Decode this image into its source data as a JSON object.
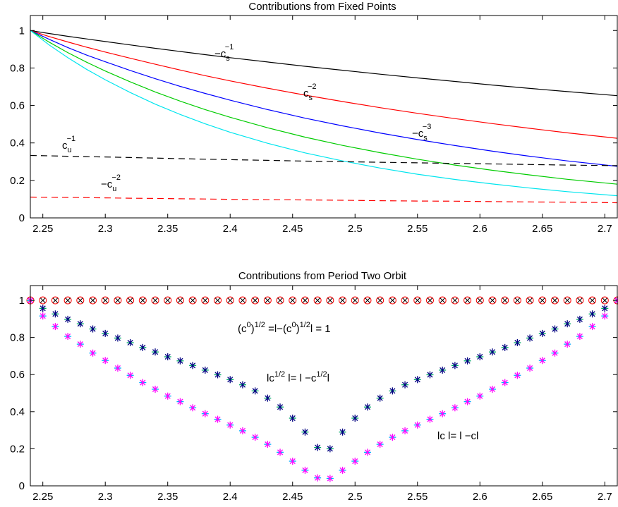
{
  "chart_data": [
    {
      "type": "line",
      "title": "Contributions from Fixed Points",
      "xlabel": "",
      "ylabel": "",
      "xlim": [
        2.24,
        2.71
      ],
      "ylim": [
        0,
        1.08
      ],
      "xticks": [
        2.25,
        2.3,
        2.35,
        2.4,
        2.45,
        2.5,
        2.55,
        2.6,
        2.65,
        2.7
      ],
      "xtick_labels": [
        "2.25",
        "2.3",
        "2.35",
        "2.4",
        "2.45",
        "2.5",
        "2.55",
        "2.6",
        "2.65",
        "2.7"
      ],
      "yticks": [
        0,
        0.2,
        0.4,
        0.6,
        0.8,
        1
      ],
      "ytick_labels": [
        "0",
        "0.2",
        "0.4",
        "0.6",
        "0.8",
        "1"
      ],
      "grid": false,
      "x": [
        2.24,
        2.255,
        2.27,
        2.285,
        2.3,
        2.32,
        2.34,
        2.36,
        2.38,
        2.4,
        2.43,
        2.46,
        2.49,
        2.52,
        2.55,
        2.58,
        2.61,
        2.64,
        2.67,
        2.71
      ],
      "series": [
        {
          "color": "#000000",
          "dash": "solid",
          "values": [
            1.0,
            0.984,
            0.969,
            0.955,
            0.941,
            0.923,
            0.905,
            0.888,
            0.871,
            0.855,
            0.832,
            0.809,
            0.788,
            0.767,
            0.747,
            0.728,
            0.709,
            0.691,
            0.674,
            0.652
          ]
        },
        {
          "color": "#ff0000",
          "dash": "solid",
          "values": [
            1.0,
            0.968,
            0.939,
            0.911,
            0.885,
            0.852,
            0.82,
            0.789,
            0.759,
            0.731,
            0.692,
            0.655,
            0.621,
            0.588,
            0.558,
            0.53,
            0.503,
            0.478,
            0.454,
            0.425
          ]
        },
        {
          "color": "#0000ff",
          "dash": "solid",
          "values": [
            1.0,
            0.953,
            0.909,
            0.869,
            0.833,
            0.787,
            0.743,
            0.702,
            0.664,
            0.628,
            0.578,
            0.532,
            0.491,
            0.453,
            0.418,
            0.386,
            0.356,
            0.329,
            0.304,
            0.275
          ]
        },
        {
          "color": "#00cc00",
          "dash": "solid",
          "values": [
            1.0,
            0.938,
            0.882,
            0.831,
            0.784,
            0.726,
            0.672,
            0.623,
            0.578,
            0.537,
            0.481,
            0.431,
            0.387,
            0.348,
            0.313,
            0.282,
            0.254,
            0.229,
            0.206,
            0.18
          ]
        },
        {
          "color": "#00e5ee",
          "dash": "solid",
          "values": [
            1.0,
            0.923,
            0.855,
            0.793,
            0.737,
            0.669,
            0.607,
            0.552,
            0.502,
            0.457,
            0.398,
            0.347,
            0.304,
            0.266,
            0.233,
            0.205,
            0.181,
            0.159,
            0.14,
            0.118
          ]
        },
        {
          "color": "#000000",
          "dash": "dashed",
          "values": [
            0.333,
            0.331,
            0.329,
            0.327,
            0.325,
            0.322,
            0.319,
            0.316,
            0.313,
            0.311,
            0.307,
            0.303,
            0.3,
            0.297,
            0.294,
            0.291,
            0.288,
            0.285,
            0.282,
            0.279
          ]
        },
        {
          "color": "#ff0000",
          "dash": "dashed",
          "values": [
            0.111,
            0.11,
            0.109,
            0.108,
            0.107,
            0.105,
            0.104,
            0.102,
            0.101,
            0.099,
            0.097,
            0.096,
            0.094,
            0.092,
            0.09,
            0.089,
            0.087,
            0.085,
            0.084,
            0.081
          ]
        }
      ]
    },
    {
      "type": "scatter",
      "title": "Contributions from Period Two Orbit",
      "xlabel": "",
      "ylabel": "",
      "xlim": [
        2.24,
        2.71
      ],
      "ylim": [
        0,
        1.08
      ],
      "xticks": [
        2.25,
        2.3,
        2.35,
        2.4,
        2.45,
        2.5,
        2.55,
        2.6,
        2.65,
        2.7
      ],
      "xtick_labels": [
        "2.25",
        "2.3",
        "2.35",
        "2.4",
        "2.45",
        "2.5",
        "2.55",
        "2.6",
        "2.65",
        "2.7"
      ],
      "yticks": [
        0,
        0.2,
        0.4,
        0.6,
        0.8,
        1
      ],
      "ytick_labels": [
        "0",
        "0.2",
        "0.4",
        "0.6",
        "0.8",
        "1"
      ],
      "grid": false,
      "x": [
        2.24,
        2.25,
        2.26,
        2.27,
        2.28,
        2.29,
        2.3,
        2.31,
        2.32,
        2.33,
        2.34,
        2.35,
        2.36,
        2.37,
        2.38,
        2.39,
        2.4,
        2.41,
        2.42,
        2.43,
        2.44,
        2.45,
        2.46,
        2.47,
        2.48,
        2.49,
        2.5,
        2.51,
        2.52,
        2.53,
        2.54,
        2.55,
        2.56,
        2.57,
        2.58,
        2.59,
        2.6,
        2.61,
        2.62,
        2.63,
        2.64,
        2.65,
        2.66,
        2.67,
        2.68,
        2.69,
        2.7,
        2.71
      ],
      "series": [
        {
          "marker": "circle-x",
          "color": "#ff0000",
          "values": [
            1,
            1,
            1,
            1,
            1,
            1,
            1,
            1,
            1,
            1,
            1,
            1,
            1,
            1,
            1,
            1,
            1,
            1,
            1,
            1,
            1,
            1,
            1,
            1,
            1,
            1,
            1,
            1,
            1,
            1,
            1,
            1,
            1,
            1,
            1,
            1,
            1,
            1,
            1,
            1,
            1,
            1,
            1,
            1,
            1,
            1,
            1,
            1
          ]
        },
        {
          "marker": "asterisk",
          "color": "#000080",
          "values": [
            1,
            0.957,
            0.927,
            0.898,
            0.874,
            0.846,
            0.822,
            0.797,
            0.772,
            0.746,
            0.722,
            0.696,
            0.674,
            0.649,
            0.624,
            0.599,
            0.573,
            0.545,
            0.512,
            0.473,
            0.425,
            0.365,
            0.29,
            0.207,
            0.2,
            0.29,
            0.365,
            0.425,
            0.473,
            0.512,
            0.545,
            0.573,
            0.599,
            0.624,
            0.649,
            0.674,
            0.696,
            0.722,
            0.746,
            0.772,
            0.797,
            0.822,
            0.846,
            0.874,
            0.898,
            0.927,
            0.957,
            1
          ]
        },
        {
          "marker": "asterisk",
          "color": "#ff00ff",
          "values": [
            1,
            0.916,
            0.859,
            0.806,
            0.764,
            0.716,
            0.676,
            0.635,
            0.596,
            0.557,
            0.521,
            0.484,
            0.454,
            0.421,
            0.389,
            0.359,
            0.328,
            0.297,
            0.262,
            0.224,
            0.181,
            0.133,
            0.084,
            0.043,
            0.04,
            0.084,
            0.133,
            0.181,
            0.224,
            0.262,
            0.297,
            0.328,
            0.359,
            0.389,
            0.421,
            0.454,
            0.484,
            0.521,
            0.557,
            0.596,
            0.635,
            0.676,
            0.716,
            0.764,
            0.806,
            0.859,
            0.916,
            1
          ]
        }
      ]
    }
  ],
  "annotations": {
    "top": [
      {
        "text": "−c",
        "sub": "s",
        "sup": "−1"
      },
      {
        "text": "c",
        "sub": "s",
        "sup": "−2"
      },
      {
        "text": "−c",
        "sub": "s",
        "sup": "−3"
      },
      {
        "text": "c",
        "sub": "u",
        "sup": "−1"
      },
      {
        "text": "−c",
        "sub": "u",
        "sup": "−2"
      }
    ],
    "bottom": [
      {
        "parts": [
          "(c",
          "0",
          ")",
          "1/2",
          " =l−(c",
          "0",
          ")",
          "1/2",
          "l = 1"
        ]
      },
      {
        "parts": [
          "lc",
          "1/2",
          " l= l −c",
          "1/2",
          "l"
        ]
      },
      {
        "parts": [
          "lc l= l −cl"
        ]
      }
    ]
  }
}
